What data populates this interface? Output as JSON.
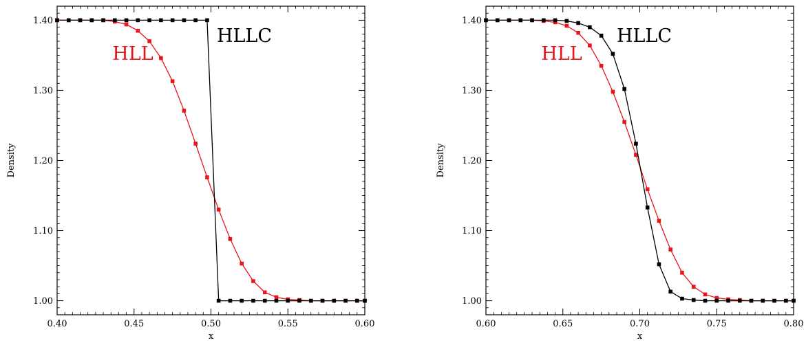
{
  "chart_data": [
    {
      "type": "line",
      "xlabel": "x",
      "ylabel": "Density",
      "xlim": [
        0.4,
        0.6
      ],
      "ylim": [
        0.98,
        1.42
      ],
      "xticks": [
        "0.40",
        "0.45",
        "0.50",
        "0.55",
        "0.60"
      ],
      "yticks": [
        "1.00",
        "1.10",
        "1.20",
        "1.30",
        "1.40"
      ],
      "series": [
        {
          "name": "HLL",
          "color": "#e8151b",
          "x": [
            0.4,
            0.4075,
            0.415,
            0.4225,
            0.43,
            0.4375,
            0.445,
            0.4525,
            0.46,
            0.4675,
            0.475,
            0.4825,
            0.49,
            0.4975,
            0.505,
            0.5125,
            0.52,
            0.5275,
            0.535,
            0.5425,
            0.55,
            0.5575,
            0.565,
            0.5725,
            0.58,
            0.5875,
            0.595,
            0.6
          ],
          "y": [
            1.4,
            1.4,
            1.4,
            1.4,
            1.4,
            1.398,
            1.394,
            1.385,
            1.37,
            1.346,
            1.313,
            1.271,
            1.224,
            1.176,
            1.13,
            1.088,
            1.053,
            1.028,
            1.012,
            1.005,
            1.002,
            1.001,
            1.0,
            1.0,
            1.0,
            1.0,
            1.0,
            1.0
          ]
        },
        {
          "name": "HLLC",
          "color": "#000000",
          "x": [
            0.4,
            0.4075,
            0.415,
            0.4225,
            0.43,
            0.4375,
            0.445,
            0.4525,
            0.46,
            0.4675,
            0.475,
            0.4825,
            0.49,
            0.4975,
            0.505,
            0.5125,
            0.52,
            0.5275,
            0.535,
            0.5425,
            0.55,
            0.5575,
            0.565,
            0.5725,
            0.58,
            0.5875,
            0.595,
            0.6
          ],
          "y": [
            1.4,
            1.4,
            1.4,
            1.4,
            1.4,
            1.4,
            1.4,
            1.4,
            1.4,
            1.4,
            1.4,
            1.4,
            1.4,
            1.4,
            1.0,
            1.0,
            1.0,
            1.0,
            1.0,
            1.0,
            1.0,
            1.0,
            1.0,
            1.0,
            1.0,
            1.0,
            1.0,
            1.0
          ]
        }
      ]
    },
    {
      "type": "line",
      "xlabel": "x",
      "ylabel": "Density",
      "xlim": [
        0.6,
        0.8
      ],
      "ylim": [
        0.98,
        1.42
      ],
      "xticks": [
        "0.60",
        "0.65",
        "0.70",
        "0.75",
        "0.80"
      ],
      "yticks": [
        "1.00",
        "1.10",
        "1.20",
        "1.30",
        "1.40"
      ],
      "series": [
        {
          "name": "HLL",
          "color": "#e8151b",
          "x": [
            0.6,
            0.6075,
            0.615,
            0.6225,
            0.63,
            0.6375,
            0.645,
            0.6525,
            0.66,
            0.6675,
            0.675,
            0.6825,
            0.69,
            0.6975,
            0.705,
            0.7125,
            0.72,
            0.7275,
            0.735,
            0.7425,
            0.75,
            0.7575,
            0.765,
            0.7725,
            0.78,
            0.7875,
            0.795,
            0.8
          ],
          "y": [
            1.4,
            1.4,
            1.4,
            1.4,
            1.4,
            1.399,
            1.397,
            1.392,
            1.382,
            1.364,
            1.335,
            1.298,
            1.255,
            1.208,
            1.159,
            1.114,
            1.073,
            1.04,
            1.02,
            1.009,
            1.004,
            1.002,
            1.001,
            1.0,
            1.0,
            1.0,
            1.0,
            1.0
          ]
        },
        {
          "name": "HLLC",
          "color": "#000000",
          "x": [
            0.6,
            0.6075,
            0.615,
            0.6225,
            0.63,
            0.6375,
            0.645,
            0.6525,
            0.66,
            0.6675,
            0.675,
            0.6825,
            0.69,
            0.6975,
            0.705,
            0.7125,
            0.72,
            0.7275,
            0.735,
            0.7425,
            0.75,
            0.7575,
            0.765,
            0.7725,
            0.78,
            0.7875,
            0.795,
            0.8
          ],
          "y": [
            1.4,
            1.4,
            1.4,
            1.4,
            1.4,
            1.4,
            1.4,
            1.399,
            1.396,
            1.39,
            1.378,
            1.352,
            1.302,
            1.224,
            1.133,
            1.052,
            1.013,
            1.003,
            1.001,
            1.0,
            1.0,
            1.0,
            1.0,
            1.0,
            1.0,
            1.0,
            1.0,
            1.0
          ]
        }
      ]
    }
  ]
}
